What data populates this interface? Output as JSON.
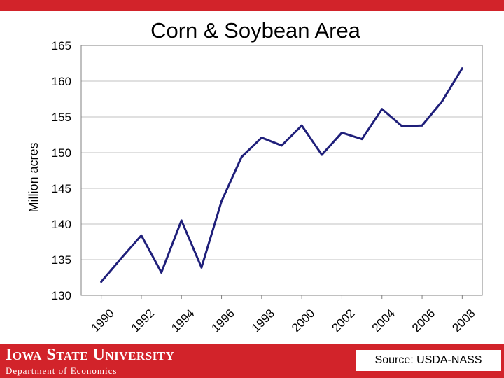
{
  "colors": {
    "accent_red": "#d2232a",
    "line_color": "#1f1f7a",
    "grid_color": "#c0c0c0",
    "background": "#ffffff"
  },
  "footer": {
    "university": "Iowa State University",
    "department": "Department of Economics",
    "source": "Source: USDA-NASS"
  },
  "chart_data": {
    "type": "line",
    "title": "Corn & Soybean Area",
    "xlabel": "",
    "ylabel": "Million acres",
    "ylim": [
      130,
      165
    ],
    "yticks": [
      "130",
      "135",
      "140",
      "145",
      "150",
      "155",
      "160",
      "165"
    ],
    "xticks": [
      "1990",
      "1992",
      "1994",
      "1996",
      "1998",
      "2000",
      "2002",
      "2004",
      "2006",
      "2008"
    ],
    "grid": true,
    "x": [
      1990,
      1991,
      1992,
      1993,
      1994,
      1995,
      1996,
      1997,
      1998,
      1999,
      2000,
      2001,
      2002,
      2003,
      2004,
      2005,
      2006,
      2007,
      2008
    ],
    "series": [
      {
        "values": [
          131.9,
          135.2,
          138.4,
          133.2,
          140.5,
          133.9,
          143.2,
          149.4,
          152.1,
          151.0,
          153.8,
          149.7,
          152.8,
          151.9,
          156.1,
          153.7,
          153.8,
          157.2,
          161.8
        ]
      }
    ]
  }
}
